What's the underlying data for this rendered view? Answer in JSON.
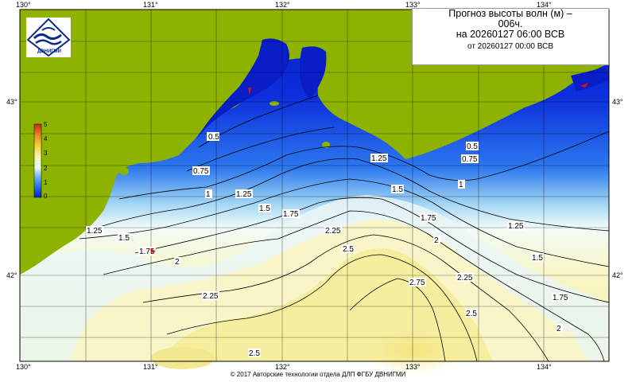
{
  "title": {
    "line1": "Прогноз высоты волн (м) –",
    "line2": "006ч.",
    "line3": "на 20260127 06:00 ВСВ",
    "line4": "от 20260127 00:00 ВСВ"
  },
  "logo": {
    "icon": "wave-logo-icon",
    "text": "ДВНИГМИ"
  },
  "axes": {
    "lon_labels": [
      "130°",
      "131°",
      "132°",
      "133°",
      "134°"
    ],
    "lat_labels": [
      "43°",
      "42°"
    ]
  },
  "colorbar": {
    "ticks": [
      "5",
      "4",
      "3",
      "2",
      "1",
      "0"
    ],
    "min": 0,
    "max": 5,
    "colors": [
      "#0a1ec8",
      "#2a6cf0",
      "#6ab6f2",
      "#e6f6f8",
      "#f8f4b8",
      "#f6d23a",
      "#e8862a",
      "#c8281a"
    ]
  },
  "contour_labels": [
    "0.5",
    "0.75",
    "1",
    "1.25",
    "1.5",
    "1.75",
    "2",
    "2.25",
    "2.5",
    "2.75"
  ],
  "colors": {
    "land": "#8db300",
    "deep_water": "#0a1ec8",
    "high_wave": "#f5eba0"
  },
  "copyright": "© 2017 Авторские технологии отдела ДЛП ФГБУ ДВНИГМИ"
}
